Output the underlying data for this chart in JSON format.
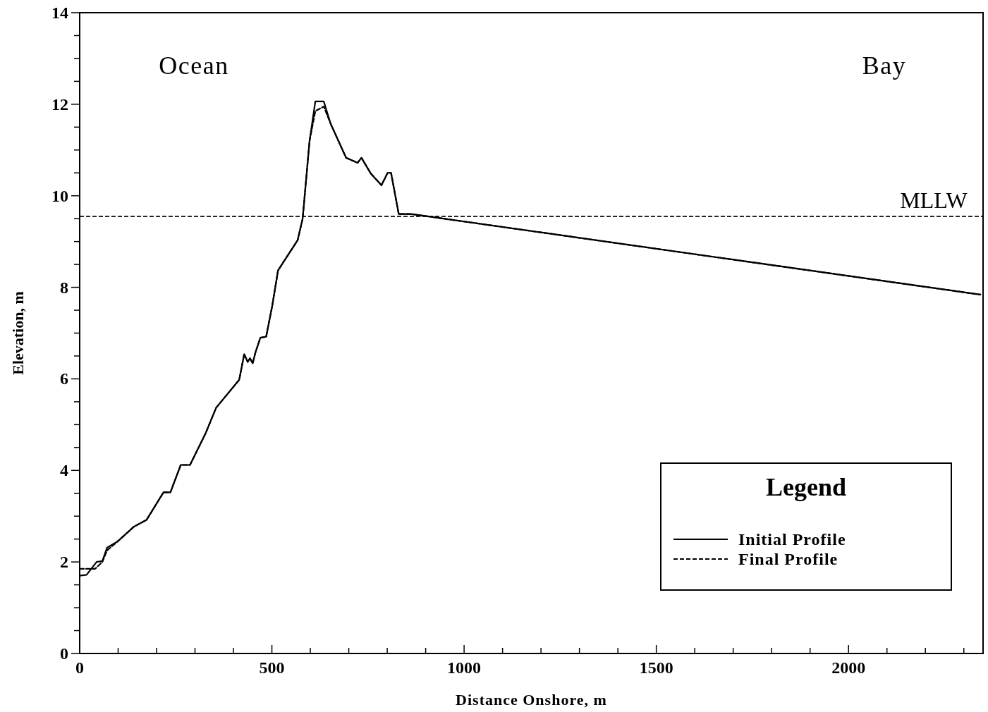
{
  "chart_data": {
    "type": "line",
    "xlabel": "Distance Onshore, m",
    "ylabel": "Elevation, m",
    "legend_title": "Legend",
    "legend": "bottom right",
    "xlim": [
      0,
      2350
    ],
    "ylim": [
      0,
      14
    ],
    "xticks": [
      0,
      {
        "value": 100,
        "label": null
      },
      {
        "value": 200,
        "label": null
      },
      {
        "value": 300,
        "label": null
      },
      {
        "value": 400,
        "label": null
      },
      500,
      {
        "value": 600,
        "label": null
      },
      {
        "value": 700,
        "label": null
      },
      {
        "value": 800,
        "label": null
      },
      {
        "value": 900,
        "label": null
      },
      1000,
      {
        "value": 1100,
        "label": null
      },
      {
        "value": 1200,
        "label": null
      },
      {
        "value": 1300,
        "label": null
      },
      {
        "value": 1400,
        "label": null
      },
      1500,
      {
        "value": 1600,
        "label": null
      },
      {
        "value": 1700,
        "label": null
      },
      {
        "value": 1800,
        "label": null
      },
      {
        "value": 1900,
        "label": null
      },
      2000,
      {
        "value": 2100,
        "label": null
      },
      {
        "value": 2200,
        "label": null
      },
      {
        "value": 2300,
        "label": null
      }
    ],
    "yticks": [
      0,
      {
        "value": 0.5,
        "label": null
      },
      {
        "value": 1,
        "label": null
      },
      {
        "value": 1.5,
        "label": null
      },
      2,
      {
        "value": 2.5,
        "label": null
      },
      {
        "value": 3,
        "label": null
      },
      {
        "value": 3.5,
        "label": null
      },
      4,
      {
        "value": 4.5,
        "label": null
      },
      {
        "value": 5,
        "label": null
      },
      {
        "value": 5.5,
        "label": null
      },
      6,
      {
        "value": 6.5,
        "label": null
      },
      {
        "value": 7,
        "label": null
      },
      {
        "value": 7.5,
        "label": null
      },
      8,
      {
        "value": 8.5,
        "label": null
      },
      {
        "value": 9,
        "label": null
      },
      {
        "value": 9.5,
        "label": null
      },
      10,
      {
        "value": 10.5,
        "label": null
      },
      {
        "value": 11,
        "label": null
      },
      {
        "value": 11.5,
        "label": null
      },
      12,
      {
        "value": 12.5,
        "label": null
      },
      {
        "value": 13,
        "label": null
      },
      {
        "value": 13.5,
        "label": null
      },
      14
    ],
    "series": [
      {
        "name": "Initial Profile",
        "color": "#000000",
        "line_style": "solid",
        "x": [
          0,
          18,
          44,
          59,
          71,
          99,
          141,
          174,
          218,
          236,
          263,
          287,
          327,
          355,
          415,
          428,
          437,
          443,
          450,
          457,
          470,
          485,
          501,
          516,
          543,
          567,
          580,
          598,
          613,
          635,
          653,
          693,
          723,
          733,
          757,
          785,
          801,
          810,
          830,
          863,
          2343
        ],
        "values": [
          1.7,
          1.72,
          2.0,
          2.02,
          2.31,
          2.45,
          2.77,
          2.92,
          3.52,
          3.52,
          4.12,
          4.12,
          4.8,
          5.37,
          5.98,
          6.54,
          6.37,
          6.45,
          6.34,
          6.57,
          6.9,
          6.92,
          7.6,
          8.37,
          8.72,
          9.03,
          9.5,
          11.2,
          12.06,
          12.06,
          11.57,
          10.83,
          10.72,
          10.83,
          10.49,
          10.23,
          10.5,
          10.5,
          9.6,
          9.6,
          7.84
        ]
      },
      {
        "name": "Final Profile",
        "color": "#000000",
        "line_style": "dashed",
        "x": [
          0,
          40,
          59,
          71,
          99,
          141,
          174,
          218,
          236,
          263,
          287,
          327,
          355,
          415,
          428,
          437,
          443,
          450,
          457,
          470,
          485,
          501,
          516,
          543,
          567,
          580,
          598,
          613,
          635,
          653,
          693,
          723,
          733,
          757,
          785,
          801,
          810,
          830,
          863,
          2343
        ],
        "values": [
          1.85,
          1.85,
          2.0,
          2.25,
          2.45,
          2.77,
          2.92,
          3.52,
          3.52,
          4.12,
          4.12,
          4.8,
          5.37,
          5.98,
          6.54,
          6.37,
          6.45,
          6.34,
          6.57,
          6.9,
          6.92,
          7.6,
          8.37,
          8.72,
          9.03,
          9.5,
          11.2,
          11.85,
          11.95,
          11.57,
          10.83,
          10.72,
          10.83,
          10.49,
          10.23,
          10.5,
          10.5,
          9.6,
          9.6,
          7.84
        ]
      }
    ],
    "ref_lines": [
      {
        "axis": "y",
        "value": 9.55,
        "label": "MLLW",
        "color": "#000000",
        "line_style": "dashed"
      }
    ],
    "annotations": [
      "Ocean",
      "Bay"
    ]
  }
}
